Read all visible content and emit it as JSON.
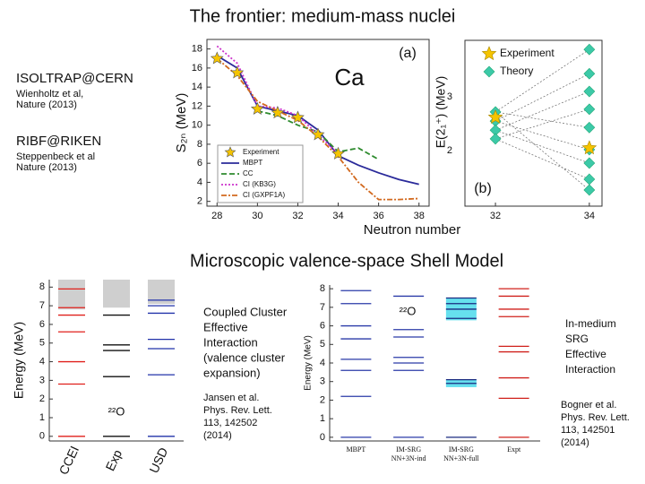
{
  "slide": {
    "title": "The frontier: medium-mass nuclei",
    "subtitle": "Microscopic valence-space Shell Model",
    "left_notes": [
      {
        "heading": "ISOLTRAP@CERN",
        "ref": [
          "Wienholtz et al,",
          "Nature (2013)"
        ]
      },
      {
        "heading": "RIBF@RIKEN",
        "ref": [
          "Steppenbeck et al",
          "Nature (2013)"
        ]
      }
    ],
    "text_blocks": [
      {
        "lines": [
          "Coupled Cluster",
          "Effective",
          "Interaction",
          "(valence cluster",
          "expansion)"
        ]
      },
      {
        "lines": [
          "Jansen et al.",
          "Phys. Rev. Lett.",
          "113, 142502",
          "(2014)"
        ]
      },
      {
        "lines": [
          "In-medium",
          "SRG",
          "Effective",
          "Interaction"
        ]
      },
      {
        "lines": [
          "Bogner et al.",
          "Phys. Rev. Lett.",
          "113, 142501",
          "(2014)"
        ]
      }
    ]
  },
  "chart_data": [
    {
      "type": "line",
      "label": "Ca",
      "panel_label": "(a)",
      "x_label": "Neutron number",
      "y_label": "S₂ₙ (MeV)",
      "x": [
        28,
        29,
        30,
        31,
        32,
        33,
        34,
        35,
        36,
        37,
        38
      ],
      "xlim": [
        27.5,
        38.5
      ],
      "xticks": [
        28,
        30,
        32,
        34,
        36,
        38
      ],
      "ylim": [
        1.5,
        19
      ],
      "yticks": [
        2,
        4,
        6,
        8,
        10,
        12,
        14,
        16,
        18
      ],
      "legend": "lower left",
      "series": [
        {
          "name": "Experiment",
          "color": "#f5c400",
          "marker": "star",
          "values": [
            17.0,
            15.5,
            11.7,
            11.3,
            10.8,
            9.0,
            7.0,
            null,
            null,
            null,
            null
          ]
        },
        {
          "name": "MBPT",
          "color": "#2a2a9a",
          "dash": "solid",
          "values": [
            17.3,
            16.0,
            12.0,
            11.5,
            11.0,
            9.5,
            6.8,
            5.8,
            5.0,
            4.3,
            3.8
          ]
        },
        {
          "name": "CC",
          "color": "#2e8b2e",
          "dash": "dashed",
          "values": [
            null,
            null,
            11.5,
            11.0,
            10.0,
            9.3,
            7.2,
            7.6,
            6.4,
            null,
            null
          ]
        },
        {
          "name": "CI (KB3G)",
          "color": "#cc33cc",
          "dash": "dotted",
          "values": [
            18.3,
            16.5,
            12.0,
            11.8,
            11.0,
            9.0,
            7.0,
            null,
            null,
            null,
            null
          ]
        },
        {
          "name": "CI (GXPF1A)",
          "color": "#d2691e",
          "dash": "dashdot",
          "values": [
            17.0,
            15.2,
            12.5,
            11.5,
            10.5,
            8.8,
            6.7,
            4.0,
            2.2,
            2.2,
            2.3
          ]
        }
      ]
    },
    {
      "type": "scatter",
      "panel_label": "(b)",
      "y_label": "E(2₁⁺) (MeV)",
      "xlim": [
        31.35,
        34.27
      ],
      "xticks": [
        32,
        34
      ],
      "ylim": [
        0.97,
        4.05
      ],
      "yticks": [
        2,
        3
      ],
      "legend": "upper right",
      "series": [
        {
          "name": "Experiment",
          "color": "#f5c400",
          "marker": "star",
          "x": [
            32,
            34
          ],
          "values": [
            2.62,
            2.05
          ]
        },
        {
          "name": "Theory",
          "color": "#3cc9a8",
          "marker": "diamond",
          "x": [
            32,
            32,
            32,
            32,
            34,
            34,
            34,
            34,
            34,
            34,
            34,
            34,
            34
          ],
          "values": [
            2.72,
            2.55,
            2.38,
            2.22,
            3.88,
            3.43,
            3.1,
            2.77,
            2.43,
            2.02,
            1.77,
            1.47,
            1.27
          ]
        }
      ]
    },
    {
      "type": "levels",
      "nucleus": "²²O",
      "y_label": "Energy (MeV)",
      "ylim": [
        -0.25,
        8.4
      ],
      "yticks": [
        0,
        1,
        2,
        3,
        4,
        5,
        6,
        7,
        8
      ],
      "categories": [
        "CCEI",
        "Exp",
        "USD"
      ],
      "colors": [
        "#e0201b",
        "#111111",
        "#2233aa"
      ],
      "levels": [
        [
          0,
          2.8,
          4.0,
          5.6,
          6.5,
          6.9,
          7.9
        ],
        [
          0,
          3.2,
          4.6,
          4.9,
          6.5
        ],
        [
          0,
          3.3,
          4.7,
          5.2,
          6.6,
          7.0,
          7.3
        ]
      ],
      "continuum": [
        6.8,
        6.9,
        7.1
      ]
    },
    {
      "type": "levels",
      "nucleus": "²²O",
      "y_label": "Energy (MeV)",
      "ylim": [
        -0.2,
        8.2
      ],
      "yticks": [
        0,
        1,
        2,
        3,
        4,
        5,
        6,
        7,
        8
      ],
      "categories": [
        "MBPT",
        "IM-SRG NN+3N-ind",
        "IM-SRG NN+3N-full",
        "Expt"
      ],
      "colors": [
        "#2a3aa8",
        "#2a3aa8",
        "#1a2a80",
        "#d0201b"
      ],
      "levels": [
        [
          0,
          2.2,
          3.6,
          4.2,
          5.3,
          6.0,
          7.2,
          7.9
        ],
        [
          0,
          3.6,
          4.0,
          4.3,
          5.4,
          5.8,
          7.6
        ],
        [
          0,
          2.9,
          3.1,
          6.4,
          6.9,
          7.2,
          7.5
        ],
        [
          0,
          2.1,
          3.2,
          4.6,
          4.9,
          6.5,
          6.9,
          7.6,
          8.0
        ]
      ],
      "bands": [
        null,
        null,
        [
          [
            6.3,
            7.5
          ],
          [
            2.7,
            3.1
          ]
        ],
        null
      ]
    }
  ]
}
